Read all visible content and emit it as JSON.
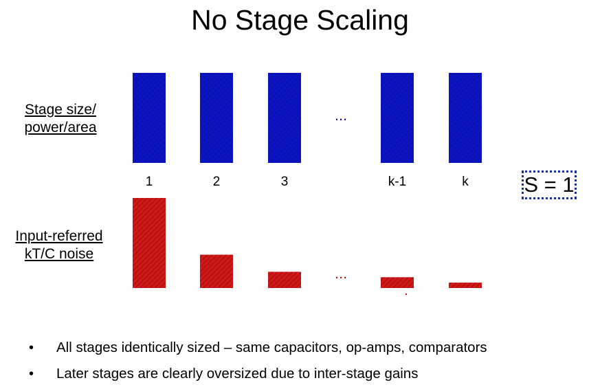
{
  "title": "No Stage Scaling",
  "labels": {
    "top": [
      "Stage size/",
      "power/area"
    ],
    "bottom": [
      "Input-referred",
      "kT/C noise"
    ]
  },
  "stages": [
    "1",
    "2",
    "3",
    "k-1",
    "k"
  ],
  "ellipsis": "...",
  "scaling_box": "S = 1",
  "stage_size": [
    1,
    1,
    1,
    1,
    1
  ],
  "noise_relative": [
    1,
    0.37,
    0.18,
    0.12,
    0.06
  ],
  "colors": {
    "size_bar": "#0a14c4",
    "noise_bar": "#cc1414",
    "box_border": "#1b2f9a"
  },
  "bullets": [
    "All stages identically sized – same capacitors, op-amps, comparators",
    "Later stages are clearly oversized due to inter-stage gains"
  ]
}
